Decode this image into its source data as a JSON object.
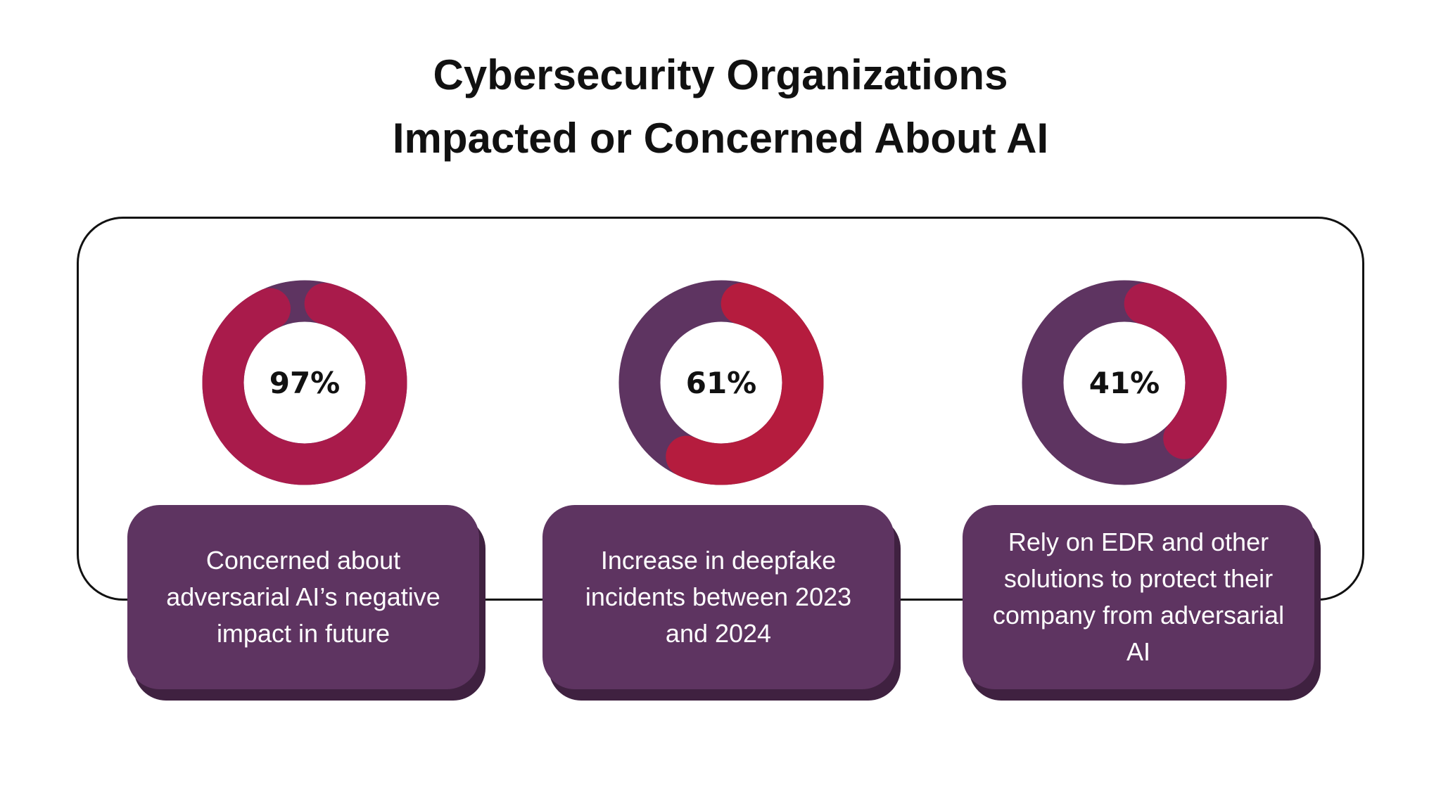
{
  "chart_data": {
    "type": "donut",
    "title": "Cybersecurity Organizations Impacted or Concerned About AI",
    "title_lines": [
      "Cybersecurity Organizations",
      "Impacted or Concerned About AI"
    ],
    "colors": {
      "track": "#5e3461",
      "fill": "#a91b4b",
      "card": "#5e3461",
      "card_shadow": "#3f2140"
    },
    "items": [
      {
        "value": 97,
        "label": "97%",
        "description": "Concerned about adversarial AI’s negative impact in future",
        "fill": "#a91b4b"
      },
      {
        "value": 61,
        "label": "61%",
        "description": "Increase in deepfake incidents between 2023 and 2024",
        "fill": "#b51c3e"
      },
      {
        "value": 41,
        "label": "41%",
        "description": "Rely on EDR and other solutions to protect their company from adversarial AI",
        "fill": "#a91b4b"
      }
    ]
  }
}
